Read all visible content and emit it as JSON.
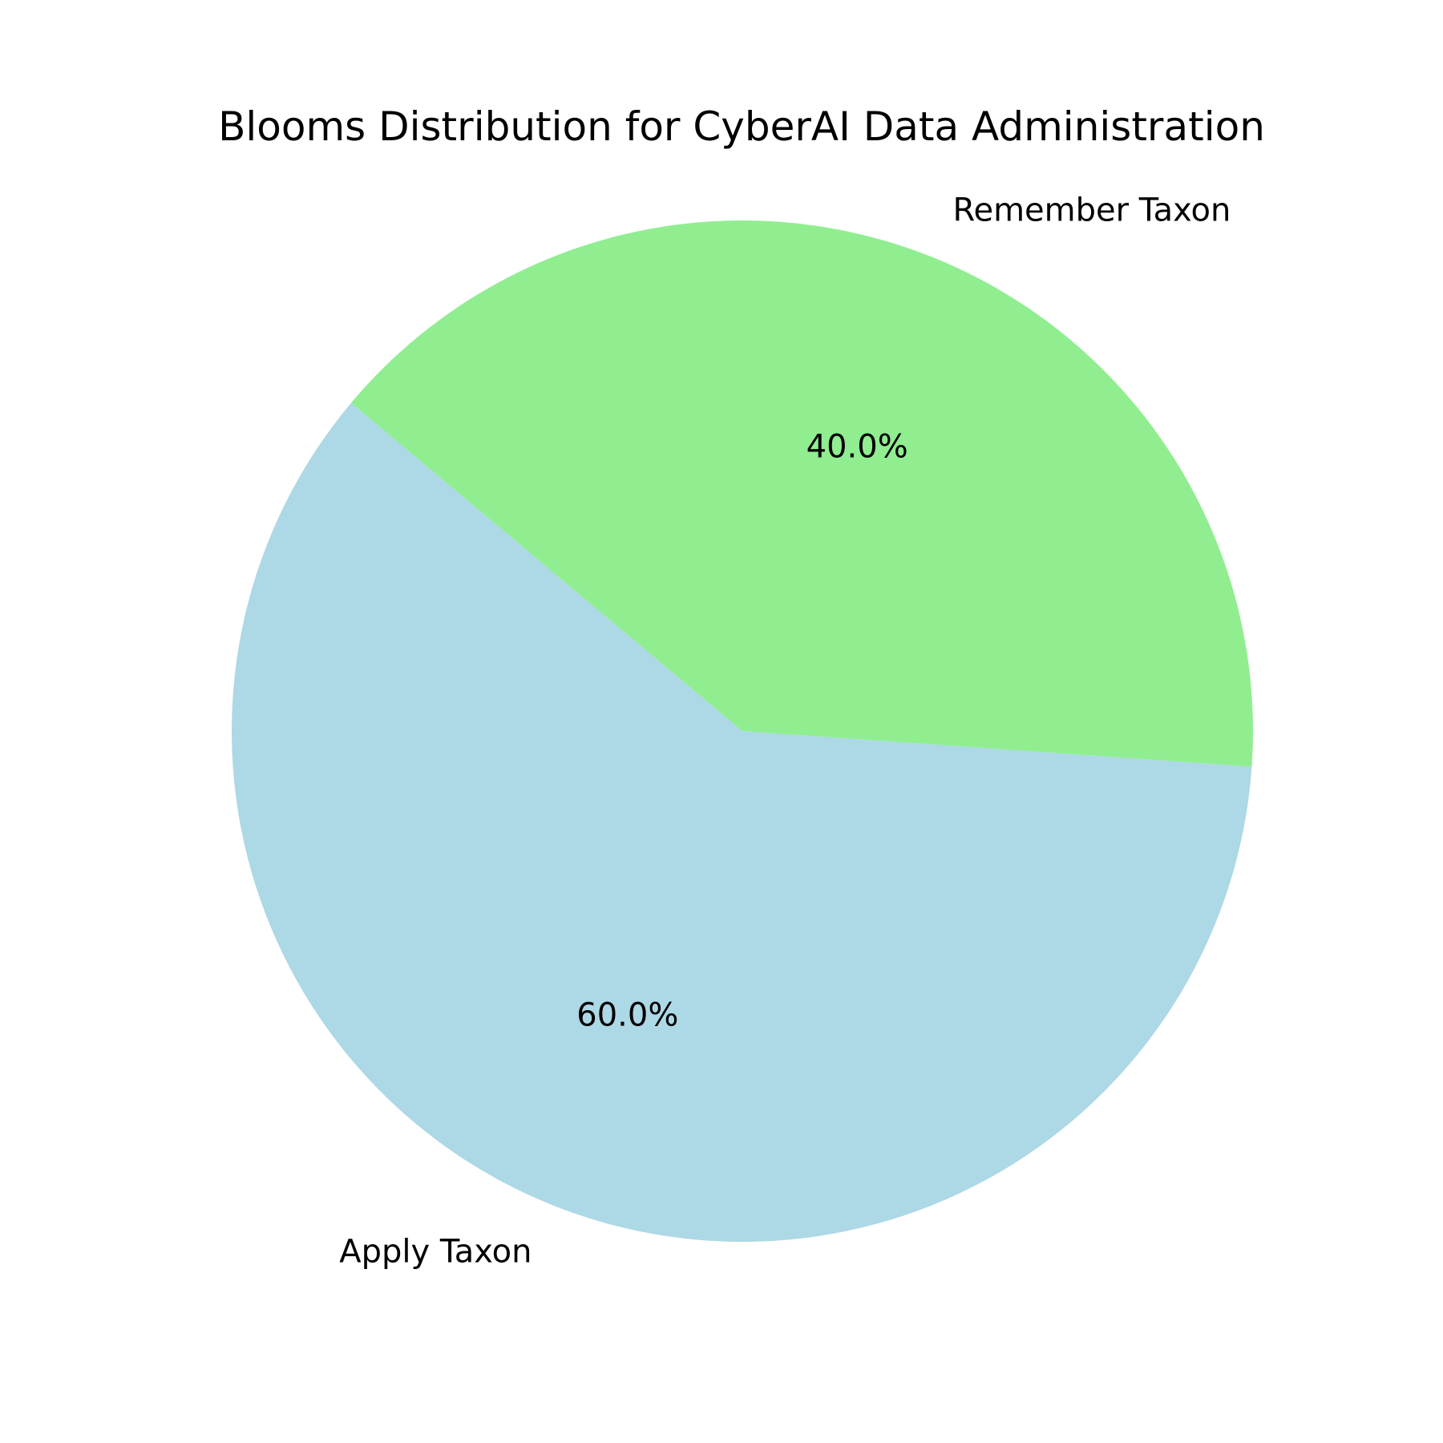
{
  "chart_data": {
    "type": "pie",
    "title": "Blooms Distribution for CyberAI Data Administration",
    "slices": [
      {
        "label": "Apply Taxon",
        "value": 60.0,
        "pct_label": "60.0%",
        "color": "#add8e6"
      },
      {
        "label": "Remember Taxon",
        "value": 40.0,
        "pct_label": "40.0%",
        "color": "#90ee90"
      }
    ],
    "start_angle_deg": 140,
    "direction": "counterclockwise",
    "legend": "none"
  }
}
